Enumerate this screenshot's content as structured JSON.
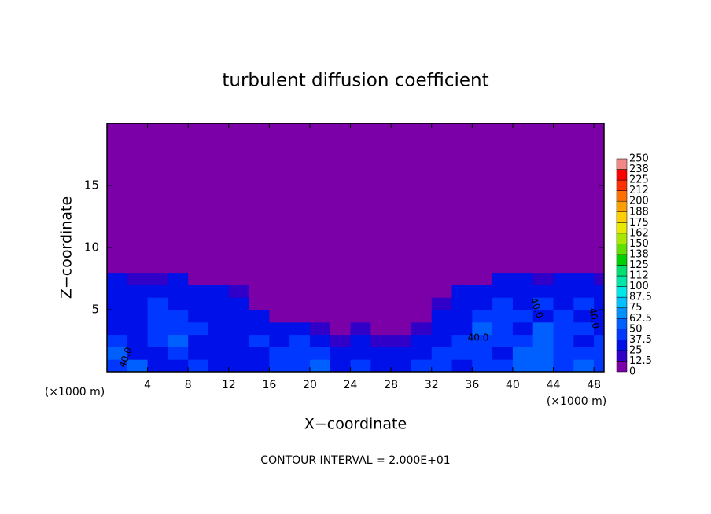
{
  "chart_data": {
    "type": "contour",
    "title": "turbulent diffusion coefficient",
    "xlabel": "X−coordinate",
    "ylabel": "Z−coordinate",
    "x_unit_label_left": "(×1000 m)",
    "x_unit_label_right": "(×1000 m)",
    "footnote": "CONTOUR INTERVAL = 2.000E+01",
    "xlim": [
      0,
      49
    ],
    "ylim": [
      0,
      20
    ],
    "xticks": [
      4,
      8,
      12,
      16,
      20,
      24,
      28,
      32,
      36,
      40,
      44,
      48
    ],
    "yticks": [
      5,
      10,
      15
    ],
    "grid": false,
    "x_edges": [
      0,
      2,
      4,
      6,
      8,
      10,
      12,
      14,
      16,
      18,
      20,
      22,
      24,
      26,
      28,
      30,
      32,
      34,
      36,
      38,
      40,
      42,
      44,
      46,
      48,
      49
    ],
    "y_edges": [
      0,
      1,
      2,
      3,
      4,
      5,
      6,
      7,
      8,
      20
    ],
    "z": [
      [
        45,
        50,
        30,
        35,
        40,
        35,
        30,
        35,
        45,
        40,
        50,
        35,
        40,
        30,
        35,
        40,
        45,
        35,
        40,
        45,
        50,
        55,
        45,
        50,
        45
      ],
      [
        50,
        35,
        30,
        40,
        35,
        30,
        30,
        35,
        40,
        45,
        40,
        30,
        35,
        30,
        25,
        35,
        40,
        40,
        45,
        35,
        50,
        60,
        40,
        45,
        40
      ],
      [
        40,
        35,
        45,
        50,
        35,
        30,
        30,
        40,
        35,
        40,
        30,
        20,
        25,
        20,
        20,
        30,
        35,
        45,
        40,
        40,
        45,
        55,
        40,
        35,
        45
      ],
      [
        35,
        30,
        40,
        45,
        40,
        35,
        30,
        35,
        30,
        30,
        20,
        10,
        15,
        10,
        10,
        15,
        30,
        35,
        50,
        40,
        35,
        50,
        45,
        40,
        35
      ],
      [
        30,
        35,
        45,
        40,
        35,
        30,
        30,
        35,
        10,
        10,
        5,
        5,
        5,
        5,
        5,
        5,
        25,
        35,
        40,
        45,
        40,
        35,
        40,
        35,
        30
      ],
      [
        35,
        30,
        40,
        35,
        30,
        30,
        25,
        10,
        5,
        5,
        5,
        5,
        0,
        0,
        0,
        5,
        20,
        30,
        35,
        40,
        30,
        45,
        35,
        40,
        35
      ],
      [
        30,
        35,
        30,
        30,
        25,
        30,
        20,
        5,
        0,
        5,
        5,
        0,
        0,
        0,
        0,
        0,
        5,
        25,
        30,
        30,
        35,
        30,
        35,
        30,
        30
      ],
      [
        25,
        20,
        20,
        25,
        10,
        5,
        5,
        0,
        0,
        0,
        0,
        0,
        0,
        0,
        0,
        0,
        0,
        5,
        10,
        25,
        30,
        20,
        25,
        25,
        20
      ],
      [
        0,
        0,
        0,
        0,
        0,
        0,
        0,
        0,
        0,
        0,
        0,
        0,
        0,
        0,
        0,
        0,
        0,
        0,
        0,
        0,
        0,
        0,
        0,
        0,
        0
      ]
    ],
    "zlim": [
      0,
      250
    ],
    "zticks": [
      0,
      12.5,
      25,
      37.5,
      50,
      62.5,
      75,
      87.5,
      100,
      {
        "value": 112.5,
        "label": "112"
      },
      125,
      {
        "value": 137.5,
        "label": "138"
      },
      150,
      {
        "value": 162.5,
        "label": "162"
      },
      175,
      {
        "value": 187.5,
        "label": "188"
      },
      200,
      {
        "value": 212.5,
        "label": "212"
      },
      225,
      {
        "value": 237.5,
        "label": "238"
      },
      250
    ],
    "colors": [
      "#7b00a8",
      "#3000c8",
      "#0010e8",
      "#0038ff",
      "#0060ff",
      "#0090ff",
      "#00c0ff",
      "#00e8e8",
      "#00e8a8",
      "#00e070",
      "#00d000",
      "#60e000",
      "#a8e800",
      "#e8e800",
      "#ffd000",
      "#ffa000",
      "#ff7000",
      "#ff3000",
      "#ff0000",
      "#f08888"
    ],
    "annotations": [
      "40.0",
      "40.0",
      "40.0",
      "40.0"
    ]
  }
}
